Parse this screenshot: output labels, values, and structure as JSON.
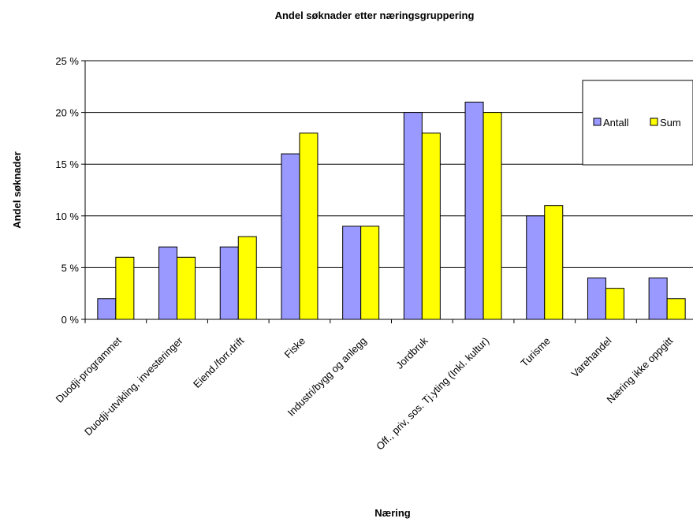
{
  "chart_data": {
    "type": "bar",
    "title": "Andel søknader etter næringsgruppering",
    "xlabel": "Næring",
    "ylabel": "Andel søknader",
    "categories": [
      "Duodji-programmet",
      "Duodji-utvikling, investeringer",
      "Eiend./forr.drift",
      "Fiske",
      "Industri/bygg og anlegg",
      "Jordbruk",
      "Off., priv, sos. Tj.yting (Inkl. kultur)",
      "Turisme",
      "Varehandel",
      "Næring ikke oppgitt"
    ],
    "series": [
      {
        "name": "Antall",
        "color": "#9999ff",
        "values": [
          2,
          7,
          7,
          16,
          9,
          20,
          21,
          10,
          4,
          4
        ]
      },
      {
        "name": "Sum",
        "color": "#ffff00",
        "values": [
          6,
          6,
          8,
          18,
          9,
          18,
          20,
          11,
          3,
          2
        ]
      }
    ],
    "ylim": [
      0,
      25
    ],
    "yticks": [
      0,
      5,
      10,
      15,
      20,
      25
    ],
    "ytick_labels": [
      "0 %",
      "5 %",
      "10 %",
      "15 %",
      "20 %",
      "25 %"
    ],
    "grid": true,
    "legend_position": "right"
  }
}
